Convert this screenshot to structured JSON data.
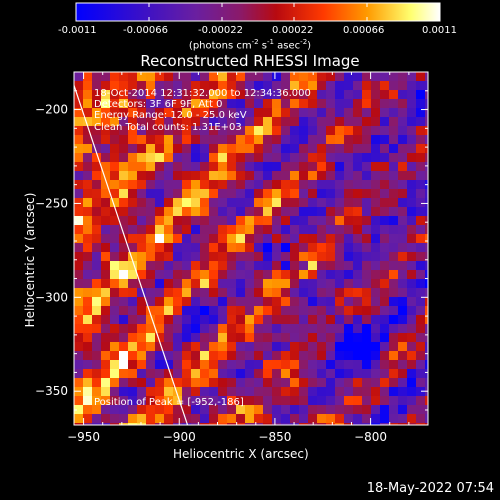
{
  "colorbar": {
    "ticks": [
      "-0.0011",
      "-0.00066",
      "-0.00022",
      "0.00022",
      "0.00066",
      "0.0011"
    ],
    "units_text": "(photons cm",
    "units_exp1": "-2",
    "units_mid": " s",
    "units_exp2": "-1",
    "units_mid2": " asec",
    "units_exp3": "-2",
    "units_end": ")",
    "colors": [
      "#0000ff",
      "#4b0082",
      "#7b2a8a",
      "#b00000",
      "#ff3000",
      "#ff9f00",
      "#ffff80",
      "#ffffff"
    ]
  },
  "chart_data": {
    "type": "heatmap",
    "title": "Reconstructed RHESSI Image",
    "xlabel": "Heliocentric X (arcsec)",
    "ylabel": "Heliocentric Y (arcsec)",
    "xlim": [
      -955,
      -770
    ],
    "ylim": [
      -368,
      -180
    ],
    "x_ticks": [
      -950,
      -900,
      -850,
      -800
    ],
    "x_tick_labels": [
      "−950",
      "−900",
      "−850",
      "−800"
    ],
    "y_ticks": [
      -200,
      -250,
      -300,
      -350
    ],
    "y_tick_labels": [
      "−200",
      "−250",
      "−300",
      "−350"
    ],
    "value_range": [
      -0.0011,
      0.0011
    ],
    "limb_line": [
      [
        -958,
        -178
      ],
      [
        -895,
        -370
      ]
    ],
    "peak_position": [
      -952,
      -186
    ]
  },
  "info": {
    "line1": "18-Oct-2014 12:31:32.000 to 12:34:36.000",
    "line2": "Detectors: 3F 6F 9F, Att 0",
    "line3": "Energy Range: 12.0 - 25.0 keV",
    "line4": "Clean     Total counts: 1.31E+03",
    "peak": "Position of Peak = [-952,-186]"
  },
  "footer": "18-May-2022 07:54"
}
